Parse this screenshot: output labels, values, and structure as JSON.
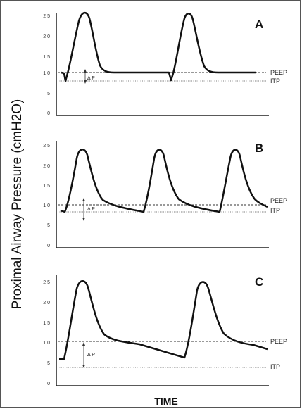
{
  "y_axis_label": "Proximal Airway Pressure (cmH2O)",
  "x_axis_label": "TIME",
  "peep_label": "PEEP",
  "itp_label": "ITP",
  "delta_p_label": "Δ P",
  "panels": [
    {
      "letter": "A",
      "ticks": [
        "2 5",
        "2 0",
        "1 5",
        "1 0",
        "5",
        "0"
      ]
    },
    {
      "letter": "B",
      "ticks": [
        "2 5",
        "2 0",
        "1 5",
        "1 0",
        "5",
        "0"
      ]
    },
    {
      "letter": "C",
      "ticks": [
        "2 5",
        "2 0",
        "1 5",
        "1 0",
        "5",
        "0"
      ]
    }
  ]
}
